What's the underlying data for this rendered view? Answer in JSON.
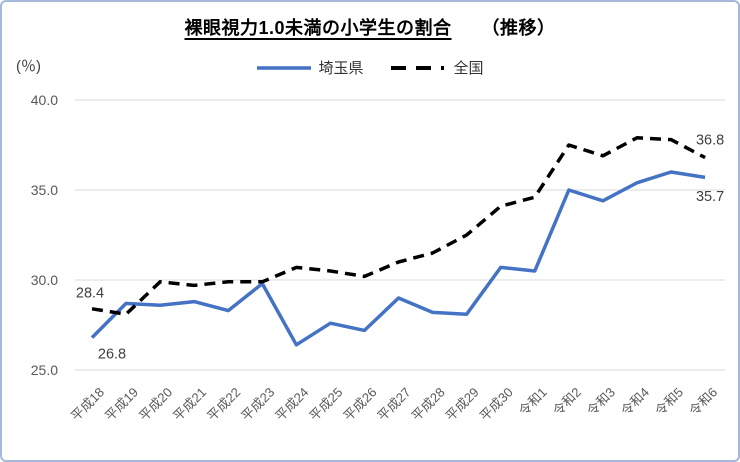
{
  "title": {
    "main": "裸眼視力1.0未満の小学生の割合",
    "suffix": "（推移）"
  },
  "y_axis": {
    "unit_label": "(％)",
    "ticks": [
      "40.0",
      "35.0",
      "30.0",
      "25.0"
    ]
  },
  "colors": {
    "saitama_line": "#4472C4",
    "zenkoku_line": "#000000",
    "gridline": "#D9D9D9",
    "tick_text": "#595959",
    "data_label_text": "#404040",
    "frame_border": "#A6B8DB",
    "background": "#FFFFFF"
  },
  "chart_data": {
    "type": "line",
    "title": "裸眼視力1.0未満の小学生の割合（推移）",
    "ylabel": "(％)",
    "ylim": [
      25.0,
      40.0
    ],
    "yticks": [
      40.0,
      35.0,
      30.0,
      25.0
    ],
    "grid": true,
    "legend_position": "top",
    "categories": [
      "平成18",
      "平成19",
      "平成20",
      "平成21",
      "平成22",
      "平成23",
      "平成24",
      "平成25",
      "平成26",
      "平成27",
      "平成28",
      "平成29",
      "平成30",
      "令和1",
      "令和2",
      "令和3",
      "令和4",
      "令和5",
      "令和6"
    ],
    "series": [
      {
        "name": "埼玉県",
        "color": "#4472C4",
        "dash": false,
        "values": [
          26.8,
          28.7,
          28.6,
          28.8,
          28.3,
          29.8,
          26.4,
          27.6,
          27.2,
          29.0,
          28.2,
          28.1,
          30.7,
          30.5,
          35.0,
          34.4,
          35.4,
          36.0,
          35.7
        ]
      },
      {
        "name": "全国",
        "color": "#000000",
        "dash": true,
        "values": [
          28.4,
          28.1,
          29.9,
          29.7,
          29.9,
          29.9,
          30.7,
          30.5,
          30.2,
          31.0,
          31.5,
          32.5,
          34.1,
          34.6,
          37.5,
          36.9,
          37.9,
          37.8,
          36.8
        ]
      }
    ],
    "point_labels": [
      {
        "series": "全国",
        "category": "平成18",
        "text": "28.4",
        "placement": "above-left"
      },
      {
        "series": "埼玉県",
        "category": "平成18",
        "text": "26.8",
        "placement": "below-right"
      },
      {
        "series": "全国",
        "category": "令和6",
        "text": "36.8",
        "placement": "right-above"
      },
      {
        "series": "埼玉県",
        "category": "令和6",
        "text": "35.7",
        "placement": "right-below"
      }
    ]
  }
}
